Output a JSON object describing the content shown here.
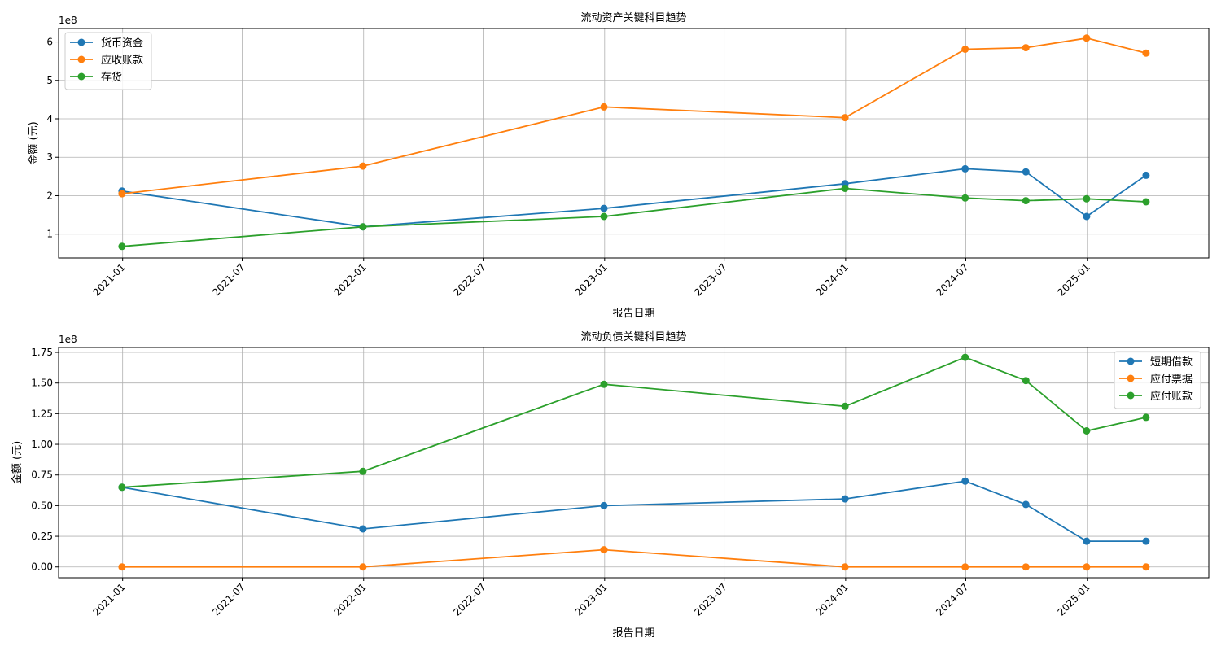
{
  "chart_data": [
    {
      "type": "line",
      "title": "流动资产关键科目趋势",
      "xlabel": "报告日期",
      "ylabel": "金额 (元)",
      "y_offset_label": "1e8",
      "x": [
        "2020-12-31",
        "2021-12-31",
        "2022-12-31",
        "2023-12-31",
        "2024-06-30",
        "2024-09-30",
        "2024-12-31",
        "2025-03-31"
      ],
      "xticks": [
        "2021-01",
        "2021-07",
        "2022-01",
        "2022-07",
        "2023-01",
        "2023-07",
        "2024-01",
        "2024-07",
        "2025-01"
      ],
      "yticks": [
        1,
        2,
        3,
        4,
        5,
        6
      ],
      "ylim": [
        0.38,
        6.35
      ],
      "xlim": [
        "2020-09-26",
        "2025-07-04"
      ],
      "grid": true,
      "legend_position": "top-left",
      "series": [
        {
          "name": "货币资金",
          "color": "#1f77b4",
          "values": [
            2.12,
            1.19,
            1.67,
            2.31,
            2.7,
            2.62,
            1.46,
            2.53
          ]
        },
        {
          "name": "应收账款",
          "color": "#ff7f0e",
          "values": [
            2.05,
            2.77,
            4.31,
            4.03,
            5.81,
            5.85,
            6.1,
            5.71
          ]
        },
        {
          "name": "存货",
          "color": "#2ca02c",
          "values": [
            0.68,
            1.19,
            1.46,
            2.19,
            1.94,
            1.87,
            1.92,
            1.84
          ]
        }
      ]
    },
    {
      "type": "line",
      "title": "流动负债关键科目趋势",
      "xlabel": "报告日期",
      "ylabel": "金额 (元)",
      "y_offset_label": "1e8",
      "x": [
        "2020-12-31",
        "2021-12-31",
        "2022-12-31",
        "2023-12-31",
        "2024-06-30",
        "2024-09-30",
        "2024-12-31",
        "2025-03-31"
      ],
      "xticks": [
        "2021-01",
        "2021-07",
        "2022-01",
        "2022-07",
        "2023-01",
        "2023-07",
        "2024-01",
        "2024-07",
        "2025-01"
      ],
      "yticks": [
        "0.00",
        "0.25",
        "0.50",
        "0.75",
        "1.00",
        "1.25",
        "1.50",
        "1.75"
      ],
      "ylim": [
        -0.088,
        1.79
      ],
      "xlim": [
        "2020-09-26",
        "2025-07-04"
      ],
      "grid": true,
      "legend_position": "top-right",
      "series": [
        {
          "name": "短期借款",
          "color": "#1f77b4",
          "values": [
            0.65,
            0.31,
            0.5,
            0.555,
            0.7,
            0.51,
            0.21,
            0.21
          ]
        },
        {
          "name": "应付票据",
          "color": "#ff7f0e",
          "values": [
            0.0,
            0.0,
            0.14,
            0.0,
            0.0,
            0.0,
            0.0,
            0.0
          ]
        },
        {
          "name": "应付账款",
          "color": "#2ca02c",
          "values": [
            0.65,
            0.78,
            1.49,
            1.31,
            1.71,
            1.52,
            1.11,
            1.22
          ]
        }
      ]
    }
  ]
}
